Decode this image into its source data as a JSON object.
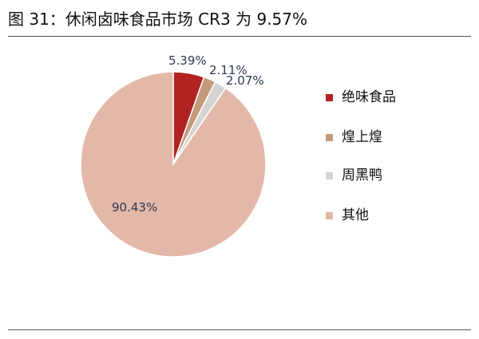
{
  "figure": {
    "title": "图 31：休闲卤味食品市场 CR3 为 9.57%"
  },
  "chart_data": {
    "type": "pie",
    "title": "",
    "slices": [
      {
        "label": "绝味食品",
        "value": 5.39,
        "value_label": "5.39%",
        "color": "#b22222"
      },
      {
        "label": "煌上煌",
        "value": 2.11,
        "value_label": "2.11%",
        "color": "#c49a7a"
      },
      {
        "label": "周黑鸭",
        "value": 2.07,
        "value_label": "2.07%",
        "color": "#d4d4d4"
      },
      {
        "label": "其他",
        "value": 90.43,
        "value_label": "90.43%",
        "color": "#e4b8a9"
      }
    ],
    "legend_position": "right"
  }
}
